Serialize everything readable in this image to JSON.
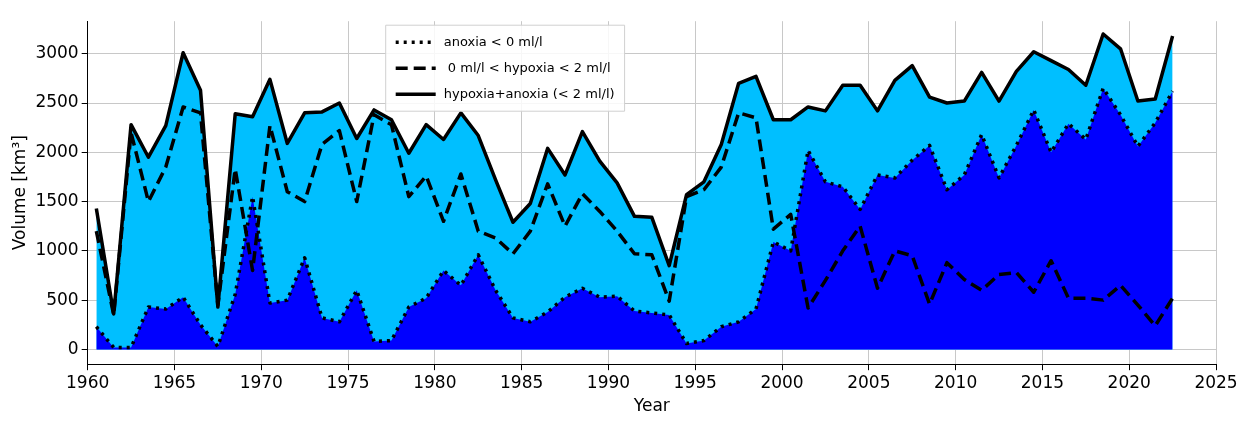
{
  "chart_data": {
    "type": "area",
    "xlabel": "Year",
    "ylabel": "Volume [km³]",
    "x": [
      1960.5,
      1961.5,
      1962.5,
      1963.5,
      1964.5,
      1965.5,
      1966.5,
      1967.5,
      1968.5,
      1969.5,
      1970.5,
      1971.5,
      1972.5,
      1973.5,
      1974.5,
      1975.5,
      1976.5,
      1977.5,
      1978.5,
      1979.5,
      1980.5,
      1981.5,
      1982.5,
      1983.5,
      1984.5,
      1985.5,
      1986.5,
      1987.5,
      1988.5,
      1989.5,
      1990.5,
      1991.5,
      1992.5,
      1993.5,
      1994.5,
      1995.5,
      1996.5,
      1997.5,
      1998.5,
      1999.5,
      2000.5,
      2001.5,
      2002.5,
      2003.5,
      2004.5,
      2005.5,
      2006.5,
      2007.5,
      2008.5,
      2009.5,
      2010.5,
      2011.5,
      2012.5,
      2013.5,
      2014.5,
      2015.5,
      2016.5,
      2017.5,
      2018.5,
      2019.5,
      2020.5,
      2021.5,
      2022.5
    ],
    "series": [
      {
        "name": "anoxia < 0 ml/l",
        "color": "#0000ff",
        "line_style": "dotted",
        "values": [
          230,
          20,
          20,
          430,
          410,
          530,
          250,
          30,
          560,
          1550,
          470,
          500,
          930,
          320,
          280,
          600,
          80,
          90,
          430,
          520,
          800,
          650,
          960,
          600,
          320,
          280,
          380,
          530,
          620,
          530,
          540,
          390,
          370,
          350,
          60,
          90,
          230,
          280,
          410,
          1090,
          1000,
          2020,
          1700,
          1650,
          1420,
          1770,
          1740,
          1920,
          2070,
          1620,
          1770,
          2180,
          1740,
          2070,
          2430,
          2000,
          2290,
          2130,
          2650,
          2380,
          2060,
          2300,
          2620
        ]
      },
      {
        "name": " 0 ml/l < hypoxia < 2 ml/l",
        "type": "line",
        "color": "#000000",
        "line_style": "dashed",
        "values": [
          1200,
          350,
          2200,
          1500,
          1850,
          2460,
          2400,
          450,
          1830,
          800,
          2270,
          1600,
          1500,
          2080,
          2220,
          1500,
          2380,
          2280,
          1550,
          1760,
          1300,
          1780,
          1200,
          1130,
          970,
          1200,
          1680,
          1250,
          1580,
          1400,
          1200,
          970,
          960,
          490,
          1550,
          1620,
          1850,
          2400,
          2350,
          1220,
          1370,
          420,
          700,
          1000,
          1250,
          620,
          1000,
          950,
          460,
          880,
          710,
          600,
          760,
          780,
          580,
          900,
          520,
          520,
          500,
          650,
          450,
          240,
          520
        ]
      },
      {
        "name": "hypoxia+anoxia (< 2 ml/l)",
        "color": "#00bfff",
        "line_style": "solid",
        "values": [
          1430,
          360,
          2280,
          1950,
          2270,
          3010,
          2630,
          430,
          2390,
          2360,
          2740,
          2090,
          2400,
          2410,
          2500,
          2140,
          2430,
          2330,
          1990,
          2280,
          2130,
          2400,
          2170,
          1720,
          1290,
          1480,
          2040,
          1770,
          2210,
          1910,
          1690,
          1350,
          1340,
          850,
          1570,
          1700,
          2080,
          2700,
          2770,
          2330,
          2330,
          2460,
          2420,
          2680,
          2680,
          2420,
          2730,
          2880,
          2560,
          2500,
          2520,
          2810,
          2520,
          2820,
          3020,
          2930,
          2840,
          2680,
          3200,
          3050,
          2520,
          2540,
          3180
        ]
      }
    ],
    "xlim": [
      1960,
      2025
    ],
    "xticks": [
      1960,
      1965,
      1970,
      1975,
      1980,
      1985,
      1990,
      1995,
      2000,
      2005,
      2010,
      2015,
      2020,
      2025
    ],
    "ylim": [
      -150,
      3330
    ],
    "yticks": [
      0,
      500,
      1000,
      1500,
      2000,
      2500,
      3000
    ],
    "grid": true,
    "legend": "top",
    "marker": "none"
  }
}
